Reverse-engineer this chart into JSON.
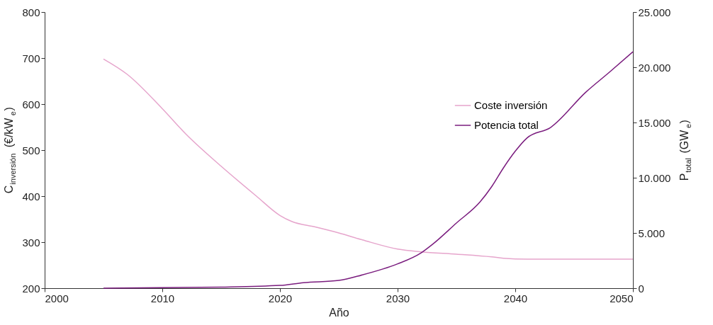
{
  "chart_data": {
    "type": "line",
    "xlabel": "Año",
    "ylabel": "C$_{inversión}$ (€/kW$_{e}$)",
    "y2label": "P$_{total}$ (GW$_{e}$)",
    "xlim": [
      2000,
      2050
    ],
    "xticks": [
      2000,
      2010,
      2020,
      2030,
      2040,
      2050
    ],
    "ylim": [
      200,
      800
    ],
    "yticks": [
      200,
      300,
      400,
      500,
      600,
      700,
      800
    ],
    "y2lim": [
      0,
      25000
    ],
    "y2ticks": [
      0,
      {
        "value": 5000,
        "label": "5.000"
      },
      {
        "value": 10000,
        "label": "10.000"
      },
      {
        "value": 15000,
        "label": "15.000"
      },
      {
        "value": 20000,
        "label": "20.000"
      },
      {
        "value": 25000,
        "label": "25.000"
      }
    ],
    "grid": false,
    "legend": "top right",
    "marker": "none",
    "line_style": "solid",
    "series": [
      {
        "name": "Coste inversión",
        "color": "#e6a5cc",
        "x": [
          2005,
          2007,
          2010,
          2012,
          2015,
          2018,
          2020,
          2021,
          2023,
          2025,
          2027,
          2030,
          2032,
          2035,
          2038,
          2039,
          2041,
          2045,
          2050
        ],
        "values": [
          698,
          665,
          590,
          535,
          465,
          400,
          358,
          345,
          333,
          320,
          305,
          285,
          279,
          274,
          268,
          265,
          263,
          263,
          263
        ]
      },
      {
        "name": "Potencia total",
        "color": "#7a1c7e",
        "axis": "y2",
        "x": [
          2005,
          2015,
          2020,
          2022,
          2025,
          2027,
          2030,
          2032,
          2033,
          2035,
          2037,
          2038,
          2039,
          2040,
          2041,
          2043,
          2046,
          2048,
          2050
        ],
        "values": [
          0,
          100,
          250,
          500,
          700,
          1200,
          2200,
          3200,
          4000,
          5900,
          7800,
          9200,
          10900,
          12400,
          13600,
          14550,
          17750,
          19550,
          21400
        ]
      }
    ]
  }
}
